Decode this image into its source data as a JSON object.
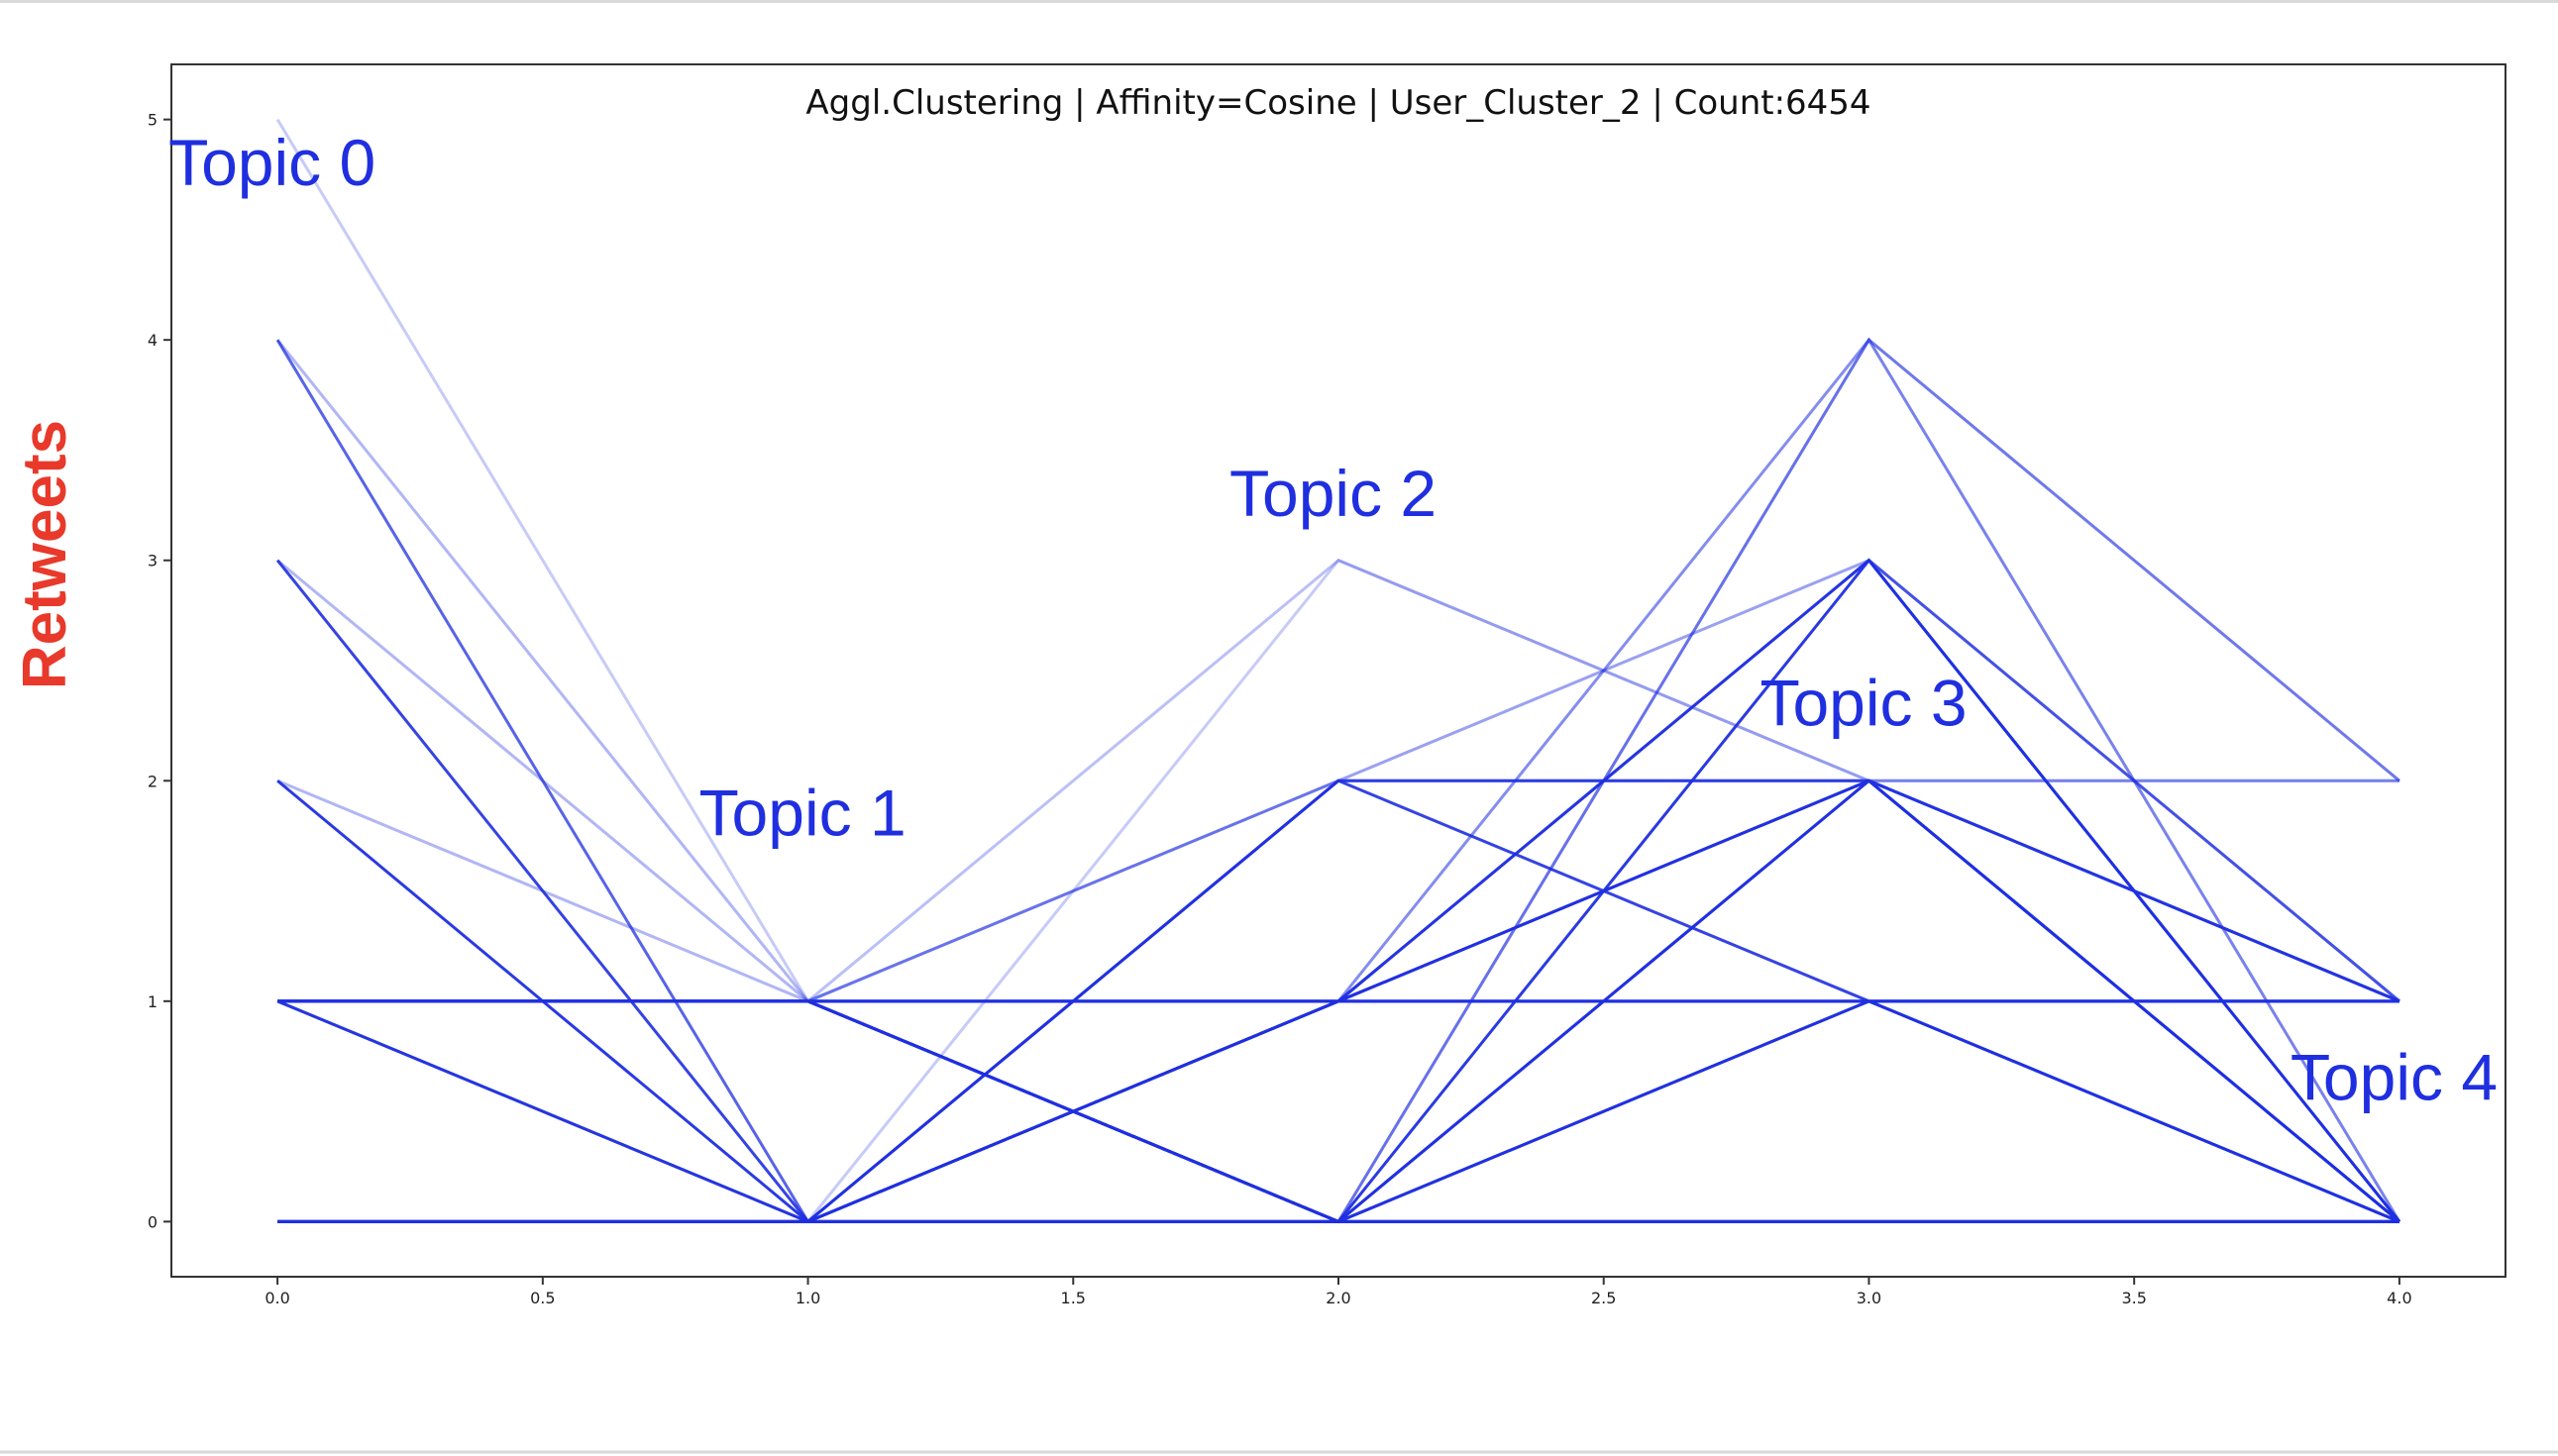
{
  "chart_data": {
    "type": "line",
    "title": "Aggl.Clustering | Affinity=Cosine | User_Cluster_2 | Count:6454",
    "xlabel": "",
    "ylabel": "Retweets",
    "xlim": [
      -0.2,
      4.2
    ],
    "ylim": [
      -0.25,
      5.25
    ],
    "x_ticks": [
      "0.0",
      "0.5",
      "1.0",
      "1.5",
      "2.0",
      "2.5",
      "3.0",
      "3.5",
      "4.0"
    ],
    "y_ticks": [
      "0",
      "1",
      "2",
      "3",
      "4",
      "5"
    ],
    "line_color": "#1f2fe0",
    "label_color": "#e8392b",
    "annotations": [
      {
        "text": "Topic 0",
        "x": 0.0,
        "y": 4.8
      },
      {
        "text": "Topic 1",
        "x": 1.0,
        "y": 1.85
      },
      {
        "text": "Topic 2",
        "x": 2.0,
        "y": 3.3
      },
      {
        "text": "Topic 3",
        "x": 3.0,
        "y": 2.35
      },
      {
        "text": "Topic 4",
        "x": 4.0,
        "y": 0.65
      }
    ],
    "x": [
      0,
      1,
      2,
      3,
      4
    ],
    "series": [
      {
        "values": [
          5,
          1,
          1,
          1,
          1
        ],
        "alpha": 0.25
      },
      {
        "values": [
          4,
          1,
          1,
          1,
          1
        ],
        "alpha": 0.35
      },
      {
        "values": [
          4,
          0,
          0,
          0,
          0
        ],
        "alpha": 0.75
      },
      {
        "values": [
          3,
          1,
          1,
          1,
          1
        ],
        "alpha": 0.35
      },
      {
        "values": [
          3,
          0,
          0,
          0,
          0
        ],
        "alpha": 0.9
      },
      {
        "values": [
          2,
          1,
          1,
          1,
          1
        ],
        "alpha": 0.35
      },
      {
        "values": [
          2,
          0,
          0,
          0,
          0
        ],
        "alpha": 0.95
      },
      {
        "values": [
          1,
          0,
          0,
          0,
          0
        ],
        "alpha": 0.95
      },
      {
        "values": [
          1,
          1,
          1,
          1,
          1
        ],
        "alpha": 0.7
      },
      {
        "values": [
          0,
          0,
          0,
          0,
          0
        ],
        "alpha": 0.95
      },
      {
        "values": [
          1,
          0,
          2,
          2,
          2
        ],
        "alpha": 0.25
      },
      {
        "values": [
          1,
          1,
          2,
          3,
          1
        ],
        "alpha": 0.45
      },
      {
        "values": [
          1,
          1,
          2,
          2,
          1
        ],
        "alpha": 0.4
      },
      {
        "values": [
          1,
          0,
          3,
          2,
          2
        ],
        "alpha": 0.25
      },
      {
        "values": [
          1,
          1,
          3,
          2,
          2
        ],
        "alpha": 0.3
      },
      {
        "values": [
          0,
          0,
          2,
          2,
          1
        ],
        "alpha": 0.85
      },
      {
        "values": [
          0,
          0,
          2,
          1,
          0
        ],
        "alpha": 0.9
      },
      {
        "values": [
          0,
          0,
          1,
          1,
          1
        ],
        "alpha": 0.9
      },
      {
        "values": [
          0,
          0,
          1,
          2,
          0
        ],
        "alpha": 0.9
      },
      {
        "values": [
          0,
          0,
          1,
          3,
          1
        ],
        "alpha": 0.7
      },
      {
        "values": [
          0,
          0,
          1,
          4,
          2
        ],
        "alpha": 0.55
      },
      {
        "values": [
          1,
          1,
          1,
          3,
          0
        ],
        "alpha": 0.9
      },
      {
        "values": [
          1,
          1,
          1,
          2,
          0
        ],
        "alpha": 0.9
      },
      {
        "values": [
          1,
          1,
          0,
          4,
          2
        ],
        "alpha": 0.2
      },
      {
        "values": [
          1,
          1,
          0,
          4,
          0
        ],
        "alpha": 0.6
      },
      {
        "values": [
          1,
          1,
          0,
          3,
          0
        ],
        "alpha": 0.95
      },
      {
        "values": [
          1,
          1,
          0,
          2,
          0
        ],
        "alpha": 0.95
      },
      {
        "values": [
          1,
          1,
          0,
          1,
          0
        ],
        "alpha": 0.95
      },
      {
        "values": [
          1,
          1,
          0,
          1,
          1
        ],
        "alpha": 0.8
      },
      {
        "values": [
          1,
          1,
          0,
          2,
          1
        ],
        "alpha": 0.8
      }
    ]
  }
}
